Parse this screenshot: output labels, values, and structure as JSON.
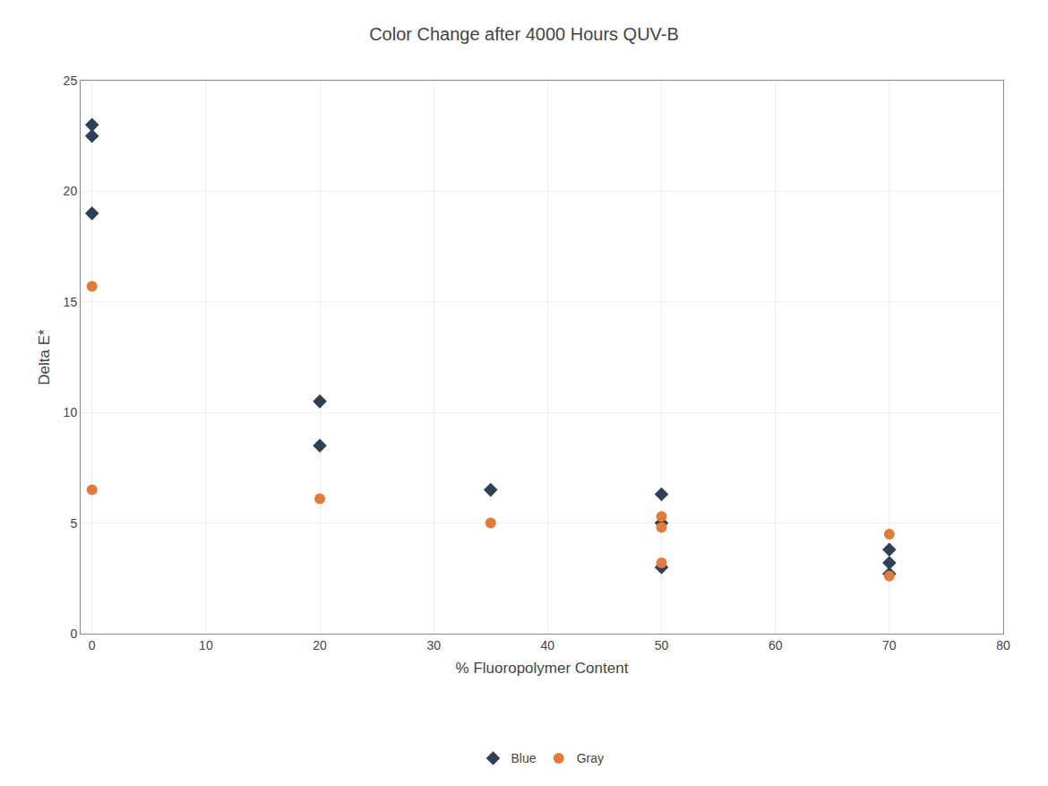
{
  "chart_data": {
    "type": "scatter",
    "title": "Color Change after 4000 Hours QUV-B",
    "xlabel": "% Fluoropolymer Content",
    "ylabel": "Delta E*",
    "xlim": [
      -1,
      80
    ],
    "ylim": [
      0,
      25
    ],
    "xticks": [
      0,
      10,
      20,
      30,
      40,
      50,
      60,
      70,
      80
    ],
    "yticks": [
      0,
      5,
      10,
      15,
      20,
      25
    ],
    "grid": true,
    "legend": "bottom",
    "series": [
      {
        "name": "Blue",
        "color": "#2e4057",
        "marker": "diamond",
        "x": [
          0,
          0,
          0,
          20,
          20,
          35,
          50,
          50,
          50,
          70,
          70,
          70
        ],
        "values": [
          23,
          22.5,
          19,
          10.5,
          8.5,
          6.5,
          6.3,
          5.0,
          3.0,
          3.8,
          3.2,
          2.7
        ]
      },
      {
        "name": "Gray",
        "color": "#e07b39",
        "marker": "circle",
        "x": [
          0,
          0,
          20,
          35,
          50,
          50,
          50,
          70,
          70
        ],
        "values": [
          15.7,
          6.5,
          6.1,
          5.0,
          5.3,
          4.8,
          3.2,
          4.5,
          2.6
        ]
      }
    ]
  }
}
